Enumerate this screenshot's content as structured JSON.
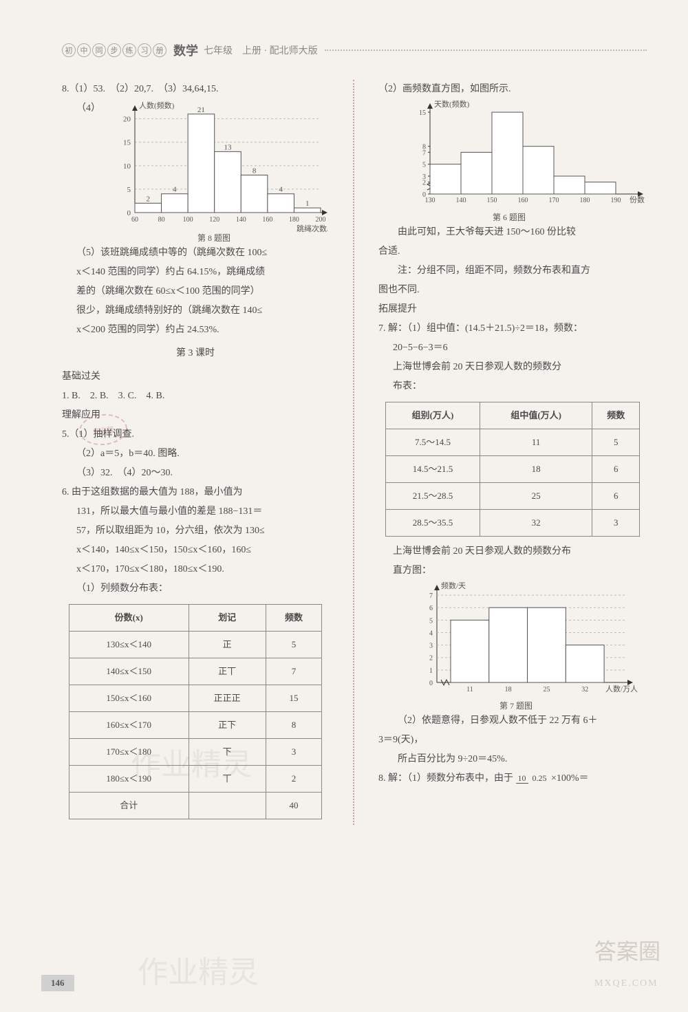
{
  "header": {
    "circles": [
      "初",
      "中",
      "同",
      "步",
      "练",
      "习",
      "册"
    ],
    "subject": "数学",
    "grade": "七年级　上册 · 配北师大版"
  },
  "left": {
    "q8_line": "8.（1）53.　（2）20,7.　（3）34,64,15.",
    "q8_sub4": "（4）",
    "chart8": {
      "ylabel": "人数(频数)",
      "xlabel": "跳绳次数/次",
      "caption": "第 8 题图",
      "yticks": [
        0,
        5,
        10,
        15,
        20
      ],
      "xticks": [
        60,
        80,
        100,
        120,
        140,
        160,
        180,
        200
      ],
      "bars": [
        {
          "x": 70,
          "v": 2,
          "label": "2"
        },
        {
          "x": 90,
          "v": 4,
          "label": "4"
        },
        {
          "x": 110,
          "v": 21,
          "label": "21"
        },
        {
          "x": 130,
          "v": 13,
          "label": "13"
        },
        {
          "x": 150,
          "v": 8,
          "label": "8"
        },
        {
          "x": 170,
          "v": 4,
          "label": "4"
        },
        {
          "x": 190,
          "v": 1,
          "label": "1"
        }
      ],
      "ymax": 22,
      "grid_color": "#bbb",
      "bar_fill": "#ffffff",
      "bar_stroke": "#555"
    },
    "q8_5a": "（5）该班跳绳成绩中等的（跳绳次数在 100≤",
    "q8_5b": "x＜140 范围的同学）约占 64.15%，跳绳成绩",
    "q8_5c": "差的（跳绳次数在 60≤x＜100 范围的同学）",
    "q8_5d": "很少，跳绳成绩特别好的（跳绳次数在 140≤",
    "q8_5e": "x＜200 范围的同学）约占 24.53%.",
    "lesson3": "第 3 课时",
    "sec_jichu": "基础过关",
    "jichu_line": "1. B.　2. B.　3. C.　4. B.",
    "sec_lijie": "理解应用",
    "q5_1": "5.（1）抽样调查.",
    "q5_2": "（2）a＝5，b＝40. 图略.",
    "q5_3": "（3）32.　（4）20～30.",
    "q6_a": "6. 由于这组数据的最大值为 188，最小值为",
    "q6_b": "131，所以最大值与最小值的差是 188−131＝",
    "q6_c": "57，所以取组距为 10，分六组，依次为 130≤",
    "q6_d": "x＜140，140≤x＜150，150≤x＜160，160≤",
    "q6_e": "x＜170，170≤x＜180，180≤x＜190.",
    "q6_t": "（1）列频数分布表：",
    "table6": {
      "headers": [
        "份数(x)",
        "划记",
        "频数"
      ],
      "rows": [
        [
          "130≤x＜140",
          "正",
          "5"
        ],
        [
          "140≤x＜150",
          "正丅",
          "7"
        ],
        [
          "150≤x＜160",
          "正正正",
          "15"
        ],
        [
          "160≤x＜170",
          "正下",
          "8"
        ],
        [
          "170≤x＜180",
          "下",
          "3"
        ],
        [
          "180≤x＜190",
          "丅",
          "2"
        ],
        [
          "合计",
          "",
          "40"
        ]
      ]
    }
  },
  "right": {
    "r2": "（2）画频数直方图，如图所示.",
    "chart6": {
      "ylabel": "天数(频数)",
      "xlabel": "份数",
      "caption": "第 6 题图",
      "yticks": [
        0,
        2,
        3,
        5,
        7,
        8,
        15
      ],
      "xticks": [
        130,
        140,
        150,
        160,
        170,
        180,
        190
      ],
      "bars": [
        {
          "x": 135,
          "v": 5
        },
        {
          "x": 145,
          "v": 7
        },
        {
          "x": 155,
          "v": 15
        },
        {
          "x": 165,
          "v": 8
        },
        {
          "x": 175,
          "v": 3
        },
        {
          "x": 185,
          "v": 2
        }
      ],
      "ymax": 16,
      "bar_fill": "#ffffff",
      "bar_stroke": "#555"
    },
    "r3a": "由此可知，王大爷每天进 150～160 份比较",
    "r3b": "合适.",
    "r4a": "注：分组不同，组距不同，频数分布表和直方",
    "r4b": "图也不同.",
    "sec_tuozhan": "拓展提升",
    "q7a": "7. 解：（1）组中值：(14.5＋21.5)÷2＝18，频数：",
    "q7b": "20−5−6−3＝6",
    "q7c": "上海世博会前 20 天日参观人数的频数分",
    "q7d": "布表：",
    "table7": {
      "headers": [
        "组别(万人)",
        "组中值(万人)",
        "频数"
      ],
      "rows": [
        [
          "7.5～14.5",
          "11",
          "5"
        ],
        [
          "14.5～21.5",
          "18",
          "6"
        ],
        [
          "21.5～28.5",
          "25",
          "6"
        ],
        [
          "28.5～35.5",
          "32",
          "3"
        ]
      ]
    },
    "q7e": "上海世博会前 20 天日参观人数的频数分布",
    "q7f": "直方图：",
    "chart7": {
      "ylabel": "频数/天",
      "xlabel": "人数/万人",
      "caption": "第 7 题图",
      "yticks": [
        0,
        1,
        2,
        3,
        4,
        5,
        6,
        7
      ],
      "xticks": [
        11,
        18,
        25,
        32
      ],
      "bars": [
        {
          "x": 11,
          "v": 5
        },
        {
          "x": 18,
          "v": 6
        },
        {
          "x": 25,
          "v": 6
        },
        {
          "x": 32,
          "v": 3
        }
      ],
      "ymax": 7.5,
      "grid_color": "#bbb",
      "bar_fill": "#ffffff",
      "bar_stroke": "#555"
    },
    "q7_2a": "（2）依题意得，日参观人数不低于 22 万有 6＋",
    "q7_2b": "3＝9(天)，",
    "q7_2c": "所占百分比为 9÷20＝45%.",
    "q8a": "8. 解：（1）频数分布表中，由于",
    "q8_frac_n": "10",
    "q8_frac_d": "0.25",
    "q8b": "×100%＝"
  },
  "pagenum": "146",
  "watermarks": {
    "wm1": "作业精灵",
    "wm2": "作业精灵",
    "answermark": "答案圈",
    "mxqe": "MXQE.COM"
  }
}
